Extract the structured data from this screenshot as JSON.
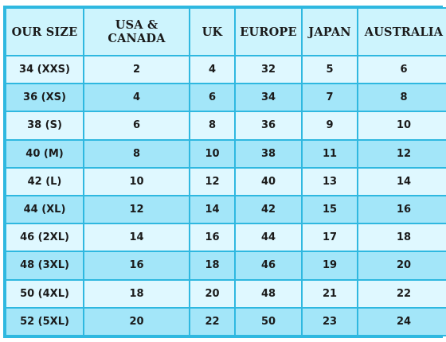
{
  "table": {
    "headers": [
      "OUR SIZE",
      "USA & CANADA",
      "UK",
      "EUROPE",
      "JAPAN",
      "AUSTRALIA"
    ],
    "rows": [
      [
        "34 (XXS)",
        "2",
        "4",
        "32",
        "5",
        "6"
      ],
      [
        "36 (XS)",
        "4",
        "6",
        "34",
        "7",
        "8"
      ],
      [
        "38 (S)",
        "6",
        "8",
        "36",
        "9",
        "10"
      ],
      [
        "40 (M)",
        "8",
        "10",
        "38",
        "11",
        "12"
      ],
      [
        "42 (L)",
        "10",
        "12",
        "40",
        "13",
        "14"
      ],
      [
        "44 (XL)",
        "12",
        "14",
        "42",
        "15",
        "16"
      ],
      [
        "46 (2XL)",
        "14",
        "16",
        "44",
        "17",
        "18"
      ],
      [
        "48 (3XL)",
        "16",
        "18",
        "46",
        "19",
        "20"
      ],
      [
        "50 (4XL)",
        "18",
        "20",
        "48",
        "21",
        "22"
      ],
      [
        "52 (5XL)",
        "20",
        "22",
        "50",
        "23",
        "24"
      ]
    ]
  },
  "colors": {
    "border": "#2fb8e0",
    "header_bg": "#cdf4fd",
    "row_light": "#dff8ff",
    "row_dark": "#a3e6f9"
  }
}
